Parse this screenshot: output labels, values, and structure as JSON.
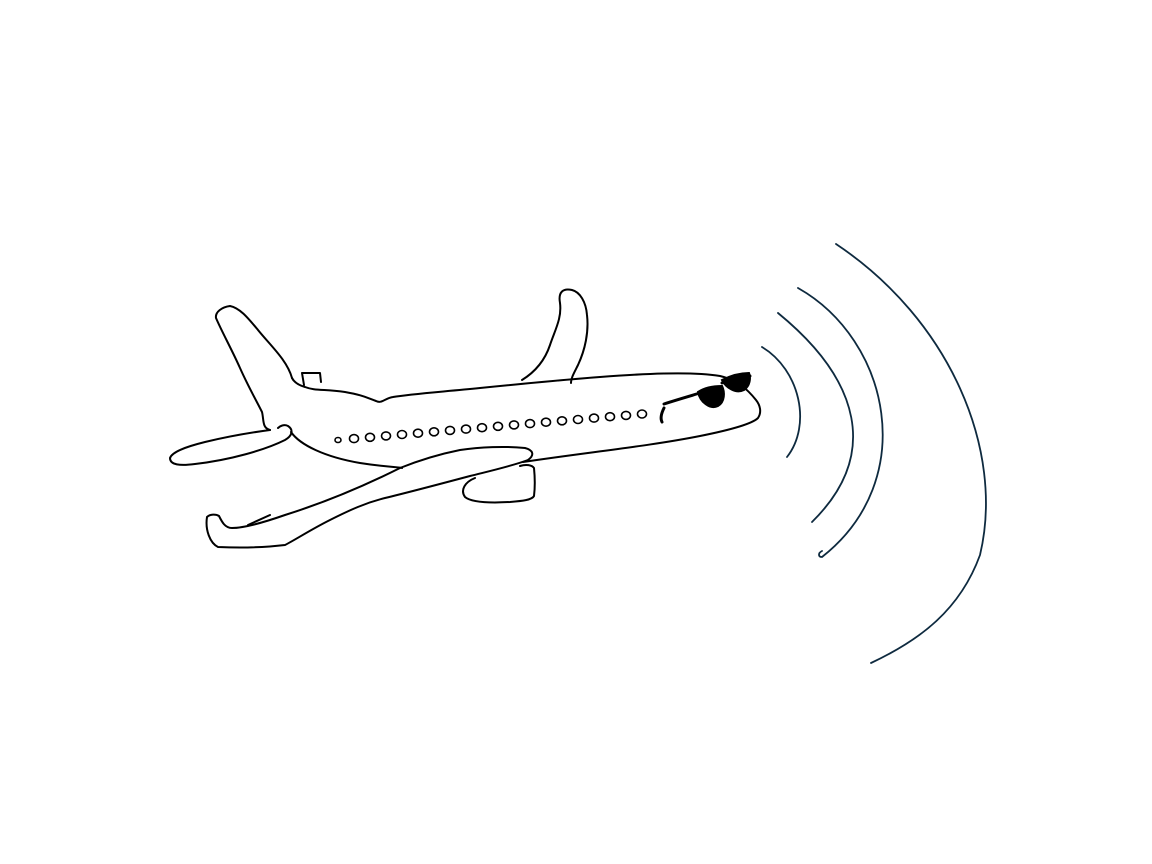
{
  "drawing": {
    "subject": "airplane-with-sunglasses",
    "stroke_color": "#000000",
    "wave_color": "#0e2a3f",
    "fill_color": "#000000",
    "background_color": "#ffffff",
    "sound_wave_count": 4,
    "window_count": 20
  }
}
